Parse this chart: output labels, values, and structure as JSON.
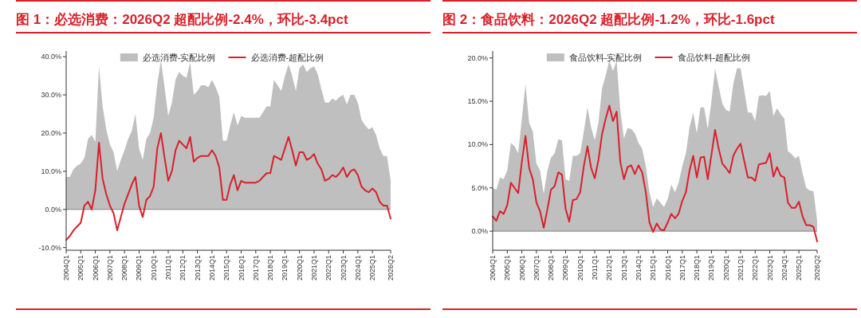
{
  "chart_data": [
    {
      "type": "line",
      "title": "图 1：必选消费：2026Q2 超配比例-2.4%，环比-3.4pct",
      "categories": [
        "2004Q1",
        null,
        null,
        null,
        "2005Q1",
        null,
        null,
        null,
        "2006Q1",
        null,
        null,
        null,
        "2007Q1",
        null,
        null,
        null,
        "2008Q1",
        null,
        null,
        null,
        "2009Q1",
        null,
        null,
        null,
        "2010Q1",
        null,
        null,
        null,
        "2011Q1",
        null,
        null,
        null,
        "2012Q1",
        null,
        null,
        null,
        "2013Q1",
        null,
        null,
        null,
        "2014Q1",
        null,
        null,
        null,
        "2015Q1",
        null,
        null,
        null,
        "2016Q1",
        null,
        null,
        null,
        "2017Q1",
        null,
        null,
        null,
        "2018Q1",
        null,
        null,
        null,
        "2019Q1",
        null,
        null,
        null,
        "2020Q1",
        null,
        null,
        null,
        "2021Q1",
        null,
        null,
        null,
        "2022Q1",
        null,
        null,
        null,
        "2023Q1",
        null,
        null,
        null,
        "2024Q1",
        null,
        null,
        null,
        "2025Q1",
        null,
        null,
        null,
        null,
        "2026Q2"
      ],
      "series": [
        {
          "name": "必选消费-实配比例",
          "type": "area",
          "color": "#bfbfbf",
          "values": [
            8.5,
            8.5,
            10.5,
            11.5,
            12,
            13.5,
            18.5,
            19.5,
            17.7,
            37.5,
            27,
            21,
            17,
            15,
            10,
            13,
            15.5,
            18.5,
            20.5,
            25,
            16,
            13,
            18.5,
            20,
            24,
            33,
            39,
            32,
            24.5,
            28,
            34,
            36,
            35,
            34.5,
            38.5,
            30,
            31,
            32.5,
            32.5,
            32,
            34,
            32,
            29.5,
            18,
            18,
            22,
            25.5,
            22,
            24.5,
            24,
            24,
            24,
            24,
            24,
            25.5,
            27,
            27,
            34,
            32.5,
            31,
            35,
            38,
            35,
            31,
            37,
            38,
            36,
            37,
            37.5,
            35.5,
            31.5,
            28,
            28,
            29,
            28.5,
            29.5,
            30,
            27.5,
            30,
            30,
            28,
            23.5,
            22,
            21,
            21.5,
            19.5,
            16,
            14,
            14,
            7.5
          ]
        },
        {
          "name": "必选消费-超配比例",
          "type": "line",
          "color": "#d9202a",
          "values": [
            -8,
            -7,
            -5.5,
            -4.5,
            -3.5,
            1,
            2,
            0,
            5,
            17.5,
            8,
            4,
            1,
            -1,
            -5.5,
            -2,
            1.5,
            4,
            6.5,
            8.5,
            1,
            -2,
            2.5,
            3.5,
            6,
            16,
            20,
            13.5,
            7.5,
            10,
            15.5,
            18,
            17,
            16,
            19,
            12.5,
            13.5,
            14,
            14,
            14,
            15.5,
            14,
            11,
            2.5,
            2.5,
            6.5,
            9,
            5,
            7.5,
            7,
            7,
            7,
            7,
            7.5,
            8.5,
            9.5,
            9.5,
            14,
            13.5,
            13,
            16,
            19,
            15.5,
            11.5,
            15,
            15,
            13,
            13.5,
            14.5,
            12,
            10.5,
            7.5,
            8,
            9,
            8.5,
            9.5,
            11,
            8.5,
            10,
            10.5,
            9,
            6,
            5,
            4.5,
            5.5,
            4.5,
            2,
            1,
            1,
            -2.4
          ]
        }
      ],
      "ylim": [
        -10.7,
        41.5
      ],
      "yticks": [
        {
          "value": -10,
          "label": "-10.0%"
        },
        {
          "value": 0,
          "label": "0.0%"
        },
        {
          "value": 10,
          "label": "10.0%"
        },
        {
          "value": 20,
          "label": "20.0%"
        },
        {
          "value": 30,
          "label": "30.0%"
        },
        {
          "value": 40,
          "label": "40.0%"
        }
      ],
      "ref_lines": [
        {
          "axis": "y",
          "value": 0,
          "color": "#808080"
        }
      ],
      "legend": "top",
      "grid": false
    },
    {
      "type": "line",
      "title": "图 2：食品饮料：2026Q2 超配比例-1.2%，环比-1.6pct",
      "categories": [
        "2004Q1",
        null,
        null,
        null,
        "2005Q1",
        null,
        null,
        null,
        "2006Q1",
        null,
        null,
        null,
        "2007Q1",
        null,
        null,
        null,
        "2008Q1",
        null,
        null,
        null,
        "2009Q1",
        null,
        null,
        null,
        "2010Q1",
        null,
        null,
        null,
        "2011Q1",
        null,
        null,
        null,
        "2012Q1",
        null,
        null,
        null,
        "2013Q1",
        null,
        null,
        null,
        "2014Q1",
        null,
        null,
        null,
        "2015Q1",
        null,
        null,
        null,
        "2016Q1",
        null,
        null,
        null,
        "2017Q1",
        null,
        null,
        null,
        "2018Q1",
        null,
        null,
        null,
        "2019Q1",
        null,
        null,
        null,
        "2020Q1",
        null,
        null,
        null,
        "2021Q1",
        null,
        null,
        null,
        "2022Q1",
        null,
        null,
        null,
        "2023Q1",
        null,
        null,
        null,
        "2024Q1",
        null,
        null,
        null,
        "2025Q1",
        null,
        null,
        null,
        null,
        "2026Q2"
      ],
      "series": [
        {
          "name": "食品饮料-实配比例",
          "type": "area",
          "color": "#bfbfbf",
          "values": [
            5,
            4.8,
            6.2,
            6,
            7,
            10.2,
            9.8,
            9,
            13,
            17,
            12.5,
            11.5,
            7.8,
            7,
            4.3,
            7,
            8.5,
            9,
            10.6,
            10.5,
            6,
            5.8,
            8.7,
            8.7,
            9,
            11.5,
            14.3,
            12,
            10.5,
            12.5,
            16.5,
            18,
            19.7,
            18.5,
            19.7,
            14,
            10.7,
            11.9,
            11.8,
            11.3,
            10.2,
            9.5,
            7.5,
            4.5,
            2.8,
            3.8,
            3.3,
            2.8,
            3.7,
            5.4,
            4.5,
            5.6,
            7.5,
            9,
            12,
            13.7,
            11.3,
            14.3,
            14.3,
            11.8,
            15,
            18.8,
            16.7,
            14.7,
            14,
            13.8,
            17,
            18.8,
            18.8,
            16.3,
            13.7,
            13.7,
            12.7,
            15.6,
            15.7,
            15.6,
            16.2,
            13.3,
            14.2,
            13.5,
            13,
            9.2,
            8.9,
            8.4,
            8.7,
            6.7,
            5,
            4.7,
            4.6,
            1.2
          ]
        },
        {
          "name": "食品饮料-超配比例",
          "type": "line",
          "color": "#d9202a",
          "values": [
            1.7,
            1.2,
            2.3,
            2,
            3,
            5.6,
            5,
            4.4,
            8,
            11,
            7.3,
            6,
            3.3,
            2.3,
            0.4,
            2.5,
            4.8,
            5.2,
            6.8,
            6.5,
            2.6,
            1.1,
            3.6,
            3.7,
            4.5,
            7.5,
            9.8,
            7.3,
            6.1,
            8.2,
            11.2,
            13,
            14.5,
            12.7,
            13.8,
            8,
            6,
            7.4,
            7.6,
            6.6,
            7.6,
            6.8,
            4.5,
            1,
            -0.1,
            0.9,
            0.2,
            0.1,
            1,
            2,
            1.5,
            2,
            3.5,
            4.5,
            7,
            8.7,
            6.2,
            8.5,
            8.6,
            6,
            8.8,
            11.7,
            9.5,
            7.8,
            7.3,
            6.7,
            8.7,
            9.5,
            10.1,
            8.1,
            6.2,
            6.2,
            5.8,
            7.7,
            7.8,
            7.9,
            9,
            6.3,
            7.4,
            6.4,
            6.2,
            3.3,
            2.7,
            2.7,
            3.4,
            1.7,
            0.7,
            0.7,
            0.5,
            -1.2
          ]
        }
      ],
      "ylim": [
        -2.2,
        20.8
      ],
      "yticks": [
        {
          "value": 0,
          "label": "0.0%"
        },
        {
          "value": 5,
          "label": "5.0%"
        },
        {
          "value": 10,
          "label": "10.0%"
        },
        {
          "value": 15,
          "label": "15.0%"
        },
        {
          "value": 20,
          "label": "20.0%"
        }
      ],
      "ref_lines": [
        {
          "axis": "y",
          "value": 0,
          "color": "#808080"
        }
      ],
      "legend": "top",
      "grid": false
    }
  ]
}
